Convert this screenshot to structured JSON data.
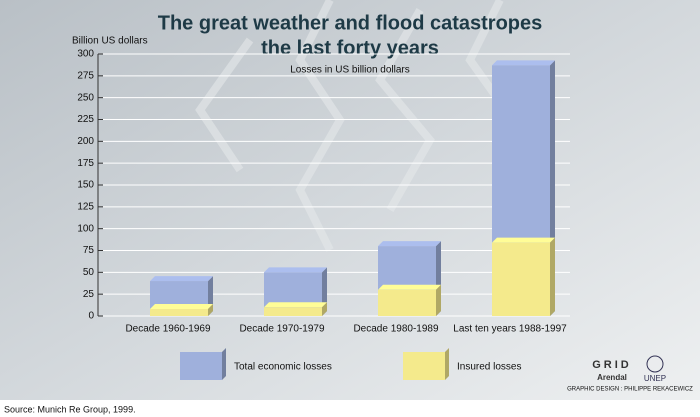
{
  "chart_data": {
    "type": "bar",
    "title": [
      "The great weather and flood catastropes",
      "the last forty years"
    ],
    "subtitle": "Losses in US billion dollars",
    "y_label": "Billion US dollars",
    "categories": [
      "Decade 1960-1969",
      "Decade 1970-1979",
      "Decade 1980-1989",
      "Last ten years 1988-1997"
    ],
    "series": [
      {
        "name": "Total economic losses",
        "color": "#9fb0dc",
        "values": [
          40,
          50,
          80,
          287
        ]
      },
      {
        "name": "Insured losses",
        "color": "#f4ea8c",
        "values": [
          8,
          10,
          30,
          84
        ]
      }
    ],
    "ylim": [
      0,
      300
    ],
    "yticks": [
      0,
      25,
      50,
      75,
      100,
      125,
      150,
      175,
      200,
      225,
      250,
      275,
      300
    ],
    "grid": true,
    "source": "Source: Munich Re Group, 1999.",
    "credits": {
      "logo_left": "GRID",
      "logo_left_sub": "Arendal",
      "logo_right": "UNEP",
      "design": "GRAPHIC DESIGN : PHILIPPE REKACEWICZ"
    }
  }
}
